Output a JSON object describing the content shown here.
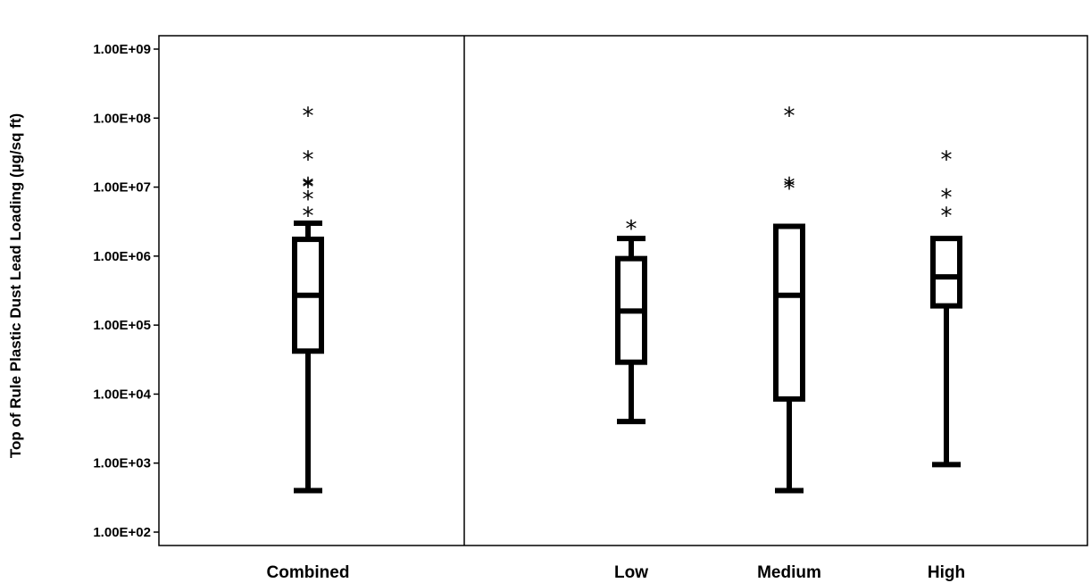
{
  "chart_data": {
    "type": "boxplot",
    "title": "",
    "xlabel": "",
    "ylabel": "Top of Rule Plastic Dust Lead Loading (µg/sq ft)",
    "yscale": "log",
    "ylim": [
      100,
      1000000000
    ],
    "yticks": [
      {
        "value": 100,
        "label": "1.00E+02"
      },
      {
        "value": 1000,
        "label": "1.00E+03"
      },
      {
        "value": 10000,
        "label": "1.00E+04"
      },
      {
        "value": 100000,
        "label": "1.00E+05"
      },
      {
        "value": 1000000,
        "label": "1.00E+06"
      },
      {
        "value": 10000000,
        "label": "1.00E+07"
      },
      {
        "value": 100000000,
        "label": "1.00E+08"
      },
      {
        "value": 1000000000,
        "label": "1.00E+09"
      }
    ],
    "grid": false,
    "legend": "none",
    "panels": [
      "combined",
      "by-level"
    ],
    "boxes": [
      {
        "name": "Combined",
        "panel": 0,
        "whisker_low": 400,
        "q1": 42000,
        "median": 270000,
        "q3": 1750000,
        "whisker_high": 3000000,
        "outliers": [
          4600000,
          8000000,
          12000000,
          12500000,
          30000000,
          130000000
        ]
      },
      {
        "name": "Low",
        "panel": 1,
        "whisker_low": 4000,
        "q1": 29000,
        "median": 160000,
        "q3": 920000,
        "whisker_high": 1800000,
        "outliers": [
          3000000
        ]
      },
      {
        "name": "Medium",
        "panel": 1,
        "whisker_low": 400,
        "q1": 8500,
        "median": 270000,
        "q3": 2700000,
        "whisker_high": 2700000,
        "outliers": [
          11500000,
          12500000,
          130000000
        ]
      },
      {
        "name": "High",
        "panel": 1,
        "whisker_low": 950,
        "q1": 190000,
        "median": 500000,
        "q3": 1800000,
        "whisker_high": 1800000,
        "outliers": [
          4600000,
          8500000,
          30000000
        ]
      }
    ]
  }
}
